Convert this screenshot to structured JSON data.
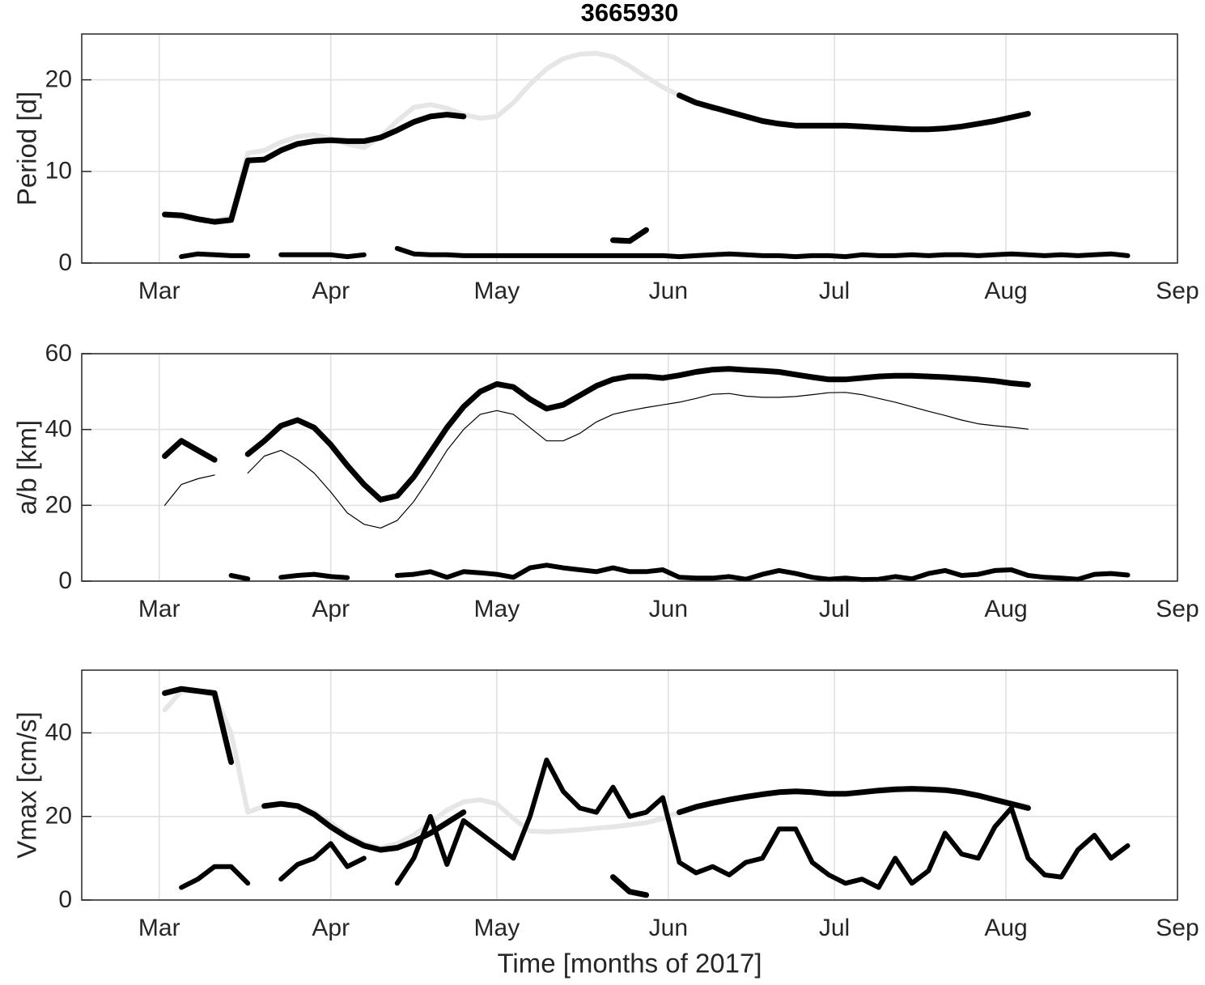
{
  "chart_data": [
    {
      "type": "line",
      "title": "3665930",
      "ylabel": "Period [d]",
      "x": [
        61,
        64,
        67,
        70,
        73,
        76,
        79,
        82,
        85,
        88,
        91,
        94,
        97,
        100,
        103,
        106,
        109,
        112,
        115,
        118,
        121,
        124,
        127,
        130,
        133,
        136,
        139,
        142,
        145,
        148,
        151,
        154,
        157,
        160,
        163,
        166,
        169,
        172,
        175,
        178,
        181,
        184,
        187,
        190,
        193,
        196,
        199,
        202,
        205,
        208,
        211,
        214,
        217,
        220,
        223,
        226,
        229,
        232,
        235,
        238,
        241
      ],
      "xlim": [
        46,
        244
      ],
      "xticks": [
        {
          "value": 60,
          "label": "Mar"
        },
        {
          "value": 91,
          "label": "Apr"
        },
        {
          "value": 121,
          "label": "May"
        },
        {
          "value": 152,
          "label": "Jun"
        },
        {
          "value": 182,
          "label": "Jul"
        },
        {
          "value": 213,
          "label": "Aug"
        },
        {
          "value": 244,
          "label": "Sep"
        }
      ],
      "ylim": [
        0,
        25
      ],
      "yticks": [
        0,
        10,
        20
      ],
      "grid": true,
      "series": [
        {
          "color": "#e6e6e6",
          "linewidth": 6,
          "values": [
            5.2,
            5.0,
            4.7,
            4.6,
            5.0,
            12,
            12.3,
            13.2,
            13.8,
            14,
            13.6,
            13,
            12.6,
            13.8,
            15.5,
            17,
            17.3,
            16.9,
            16.2,
            15.8,
            16,
            17.5,
            19.5,
            21.2,
            22.3,
            22.8,
            22.9,
            22.5,
            21.5,
            20.3,
            19.2,
            18.3,
            17.5,
            16.8,
            null,
            null,
            null,
            null,
            null,
            null,
            null,
            null,
            null,
            null,
            null,
            null,
            null,
            null,
            null,
            null,
            null,
            null,
            null,
            null,
            null,
            null,
            null,
            null,
            null,
            null,
            null
          ]
        },
        {
          "color": "#000000",
          "linewidth": 7,
          "values": [
            5.3,
            5.2,
            4.8,
            4.5,
            4.7,
            11.2,
            11.3,
            12.3,
            13.0,
            13.3,
            13.4,
            13.3,
            13.3,
            13.7,
            14.5,
            15.4,
            16.0,
            16.2,
            16.0,
            null,
            null,
            null,
            null,
            null,
            null,
            null,
            null,
            null,
            null,
            null,
            null,
            18.3,
            17.5,
            17.0,
            16.5,
            16.0,
            15.5,
            15.2,
            15.0,
            15.0,
            15.0,
            15.0,
            14.9,
            14.8,
            14.7,
            14.6,
            14.6,
            14.7,
            14.9,
            15.2,
            15.5,
            15.9,
            16.3,
            null,
            null,
            null,
            null,
            null,
            null,
            null,
            null
          ]
        },
        {
          "color": "#000000",
          "linewidth": 7,
          "values": [
            null,
            null,
            null,
            null,
            null,
            null,
            null,
            null,
            null,
            null,
            null,
            null,
            null,
            null,
            null,
            null,
            null,
            null,
            null,
            null,
            null,
            null,
            null,
            null,
            null,
            null,
            null,
            2.5,
            2.4,
            3.6,
            null,
            null,
            null,
            null,
            null,
            null,
            null,
            null,
            null,
            null,
            null,
            null,
            null,
            null,
            null,
            null,
            null,
            null,
            null,
            null,
            null,
            null,
            null,
            null,
            null,
            null,
            null,
            null,
            null,
            null,
            null
          ]
        },
        {
          "color": "#000000",
          "linewidth": 6,
          "values": [
            null,
            0.7,
            1.0,
            0.9,
            0.8,
            0.8,
            null,
            0.9,
            0.9,
            0.9,
            0.9,
            0.7,
            0.9,
            null,
            1.6,
            1.0,
            0.9,
            0.9,
            0.8,
            0.8,
            0.8,
            0.8,
            0.8,
            0.8,
            0.8,
            0.8,
            0.8,
            0.8,
            0.8,
            0.8,
            0.8,
            0.7,
            0.8,
            0.9,
            1.0,
            0.9,
            0.8,
            0.8,
            0.7,
            0.8,
            0.8,
            0.7,
            0.9,
            0.8,
            0.8,
            0.9,
            0.8,
            0.9,
            0.9,
            0.8,
            0.9,
            1.0,
            0.9,
            0.8,
            0.9,
            0.8,
            0.9,
            1.0,
            0.8,
            null,
            null
          ]
        }
      ]
    },
    {
      "type": "line",
      "ylabel": "a/b [km]",
      "x": [
        61,
        64,
        67,
        70,
        73,
        76,
        79,
        82,
        85,
        88,
        91,
        94,
        97,
        100,
        103,
        106,
        109,
        112,
        115,
        118,
        121,
        124,
        127,
        130,
        133,
        136,
        139,
        142,
        145,
        148,
        151,
        154,
        157,
        160,
        163,
        166,
        169,
        172,
        175,
        178,
        181,
        184,
        187,
        190,
        193,
        196,
        199,
        202,
        205,
        208,
        211,
        214,
        217,
        220,
        223,
        226,
        229,
        232,
        235,
        238,
        241
      ],
      "xlim": [
        46,
        244
      ],
      "xticks": [
        {
          "value": 60,
          "label": "Mar"
        },
        {
          "value": 91,
          "label": "Apr"
        },
        {
          "value": 121,
          "label": "May"
        },
        {
          "value": 152,
          "label": "Jun"
        },
        {
          "value": 182,
          "label": "Jul"
        },
        {
          "value": 213,
          "label": "Aug"
        },
        {
          "value": 244,
          "label": "Sep"
        }
      ],
      "ylim": [
        0,
        60
      ],
      "yticks": [
        0,
        20,
        40,
        60
      ],
      "grid": true,
      "series": [
        {
          "color": "#000000",
          "linewidth": 7,
          "values": [
            33,
            37,
            34.5,
            32,
            null,
            33.5,
            37,
            41,
            42.5,
            40.5,
            36,
            30.5,
            25.5,
            21.5,
            22.5,
            27.5,
            34,
            40.5,
            46,
            50,
            52,
            51.2,
            48,
            45.5,
            46.5,
            49,
            51.5,
            53.2,
            54,
            54,
            53.6,
            54.3,
            55.2,
            55.8,
            56,
            55.7,
            55.5,
            55.2,
            54.5,
            53.8,
            53.2,
            53.2,
            53.6,
            54,
            54.2,
            54.2,
            54,
            53.8,
            53.5,
            53.2,
            52.8,
            52.2,
            51.8,
            null,
            null,
            null,
            null,
            null,
            null,
            null,
            null
          ]
        },
        {
          "color": "#000000",
          "linewidth": 1.2,
          "values": [
            20,
            25.5,
            27,
            28,
            null,
            28.5,
            33,
            34.5,
            32,
            28.5,
            23.5,
            18,
            15,
            14,
            16,
            21,
            27.5,
            34.5,
            40,
            44,
            45,
            44,
            40.5,
            37,
            37,
            39,
            42,
            44,
            45,
            45.8,
            46.5,
            47.2,
            48.2,
            49.3,
            49.5,
            48.8,
            48.5,
            48.5,
            48.7,
            49.2,
            49.7,
            49.8,
            49.2,
            48.2,
            47.2,
            46,
            44.8,
            43.7,
            42.5,
            41.5,
            41,
            40.6,
            40.1,
            null,
            null,
            null,
            null,
            null,
            null,
            null,
            null
          ]
        },
        {
          "color": "#000000",
          "linewidth": 6,
          "values": [
            null,
            null,
            null,
            null,
            1.5,
            0.6,
            null,
            1.0,
            1.5,
            1.8,
            1.2,
            0.9,
            null,
            null,
            1.5,
            1.8,
            2.5,
            1.0,
            2.5,
            2.2,
            1.8,
            1.0,
            3.5,
            4.2,
            3.5,
            3.0,
            2.5,
            3.5,
            2.5,
            2.5,
            3.0,
            1.0,
            0.8,
            0.8,
            1.2,
            0.5,
            1.8,
            2.8,
            2.0,
            1.0,
            0.5,
            0.8,
            0.4,
            0.5,
            1.2,
            0.6,
            2.0,
            2.8,
            1.5,
            1.8,
            2.8,
            3.0,
            1.5,
            1.0,
            0.8,
            0.5,
            1.8,
            2.0,
            1.6,
            null,
            null
          ]
        }
      ]
    },
    {
      "type": "line",
      "ylabel": "Vmax [cm/s]",
      "xlabel": "Time [months of 2017]",
      "x": [
        61,
        64,
        67,
        70,
        73,
        76,
        79,
        82,
        85,
        88,
        91,
        94,
        97,
        100,
        103,
        106,
        109,
        112,
        115,
        118,
        121,
        124,
        127,
        130,
        133,
        136,
        139,
        142,
        145,
        148,
        151,
        154,
        157,
        160,
        163,
        166,
        169,
        172,
        175,
        178,
        181,
        184,
        187,
        190,
        193,
        196,
        199,
        202,
        205,
        208,
        211,
        214,
        217,
        220,
        223,
        226,
        229,
        232,
        235,
        238,
        241
      ],
      "xlim": [
        46,
        244
      ],
      "xticks": [
        {
          "value": 60,
          "label": "Mar"
        },
        {
          "value": 91,
          "label": "Apr"
        },
        {
          "value": 121,
          "label": "May"
        },
        {
          "value": 152,
          "label": "Jun"
        },
        {
          "value": 182,
          "label": "Jul"
        },
        {
          "value": 213,
          "label": "Aug"
        },
        {
          "value": 244,
          "label": "Sep"
        }
      ],
      "ylim": [
        0,
        55
      ],
      "yticks": [
        0,
        20,
        40
      ],
      "grid": true,
      "series": [
        {
          "color": "#e6e6e6",
          "linewidth": 6,
          "values": [
            45.5,
            50,
            50,
            49,
            40,
            21,
            22.5,
            23,
            22.5,
            21,
            18.5,
            15.5,
            13.5,
            12.5,
            13.5,
            15.5,
            18.5,
            21.5,
            23.5,
            24,
            23,
            19.5,
            16.5,
            16.3,
            16.5,
            16.8,
            17.2,
            17.5,
            18,
            18.5,
            19.5,
            21,
            22.3,
            23.2,
            24,
            24.7,
            25.3,
            25.8,
            26,
            25.8,
            25.4,
            25.4,
            25.8,
            26.2,
            26.5,
            26.6,
            26.5,
            26.3,
            25.8,
            25,
            24,
            23,
            22.5,
            null,
            null,
            null,
            null,
            null,
            null,
            null,
            null
          ]
        },
        {
          "color": "#000000",
          "linewidth": 7,
          "values": [
            49.5,
            50.5,
            50,
            49.5,
            33,
            null,
            22.5,
            23,
            22.5,
            20.5,
            17.5,
            15,
            13,
            12,
            12.5,
            14,
            16,
            18.5,
            21,
            null,
            null,
            null,
            null,
            null,
            null,
            null,
            null,
            null,
            null,
            null,
            null,
            21,
            22.3,
            23.2,
            24.0,
            24.7,
            25.3,
            25.8,
            26.0,
            25.8,
            25.4,
            25.4,
            25.8,
            26.2,
            26.5,
            26.6,
            26.5,
            26.3,
            25.8,
            25,
            24,
            23,
            22,
            null,
            null,
            null,
            null,
            null,
            null,
            null,
            null
          ]
        },
        {
          "color": "#000000",
          "linewidth": 7,
          "values": [
            null,
            null,
            null,
            null,
            null,
            null,
            null,
            null,
            null,
            null,
            null,
            null,
            null,
            null,
            null,
            null,
            null,
            null,
            null,
            null,
            null,
            null,
            null,
            null,
            null,
            null,
            null,
            5.5,
            2,
            1.2,
            null,
            null,
            null,
            null,
            null,
            null,
            null,
            null,
            null,
            null,
            null,
            null,
            null,
            null,
            null,
            null,
            null,
            null,
            null,
            null,
            null,
            null,
            null,
            null,
            null,
            null,
            null,
            null,
            null,
            null,
            null
          ]
        },
        {
          "color": "#000000",
          "linewidth": 6,
          "values": [
            null,
            3,
            5,
            8,
            8,
            4,
            null,
            5,
            8.5,
            10,
            13.5,
            8,
            10,
            null,
            4,
            10,
            20,
            8.5,
            19,
            16,
            13,
            10,
            20,
            33.5,
            26,
            22,
            21,
            27,
            20,
            21,
            24.5,
            9,
            6.5,
            8,
            6,
            9,
            10,
            17,
            17,
            9,
            6,
            4,
            5,
            3,
            10,
            4,
            7,
            16,
            11,
            10,
            17.5,
            22,
            10,
            6,
            5.5,
            12,
            15.5,
            10,
            13,
            null,
            null
          ]
        }
      ]
    }
  ]
}
